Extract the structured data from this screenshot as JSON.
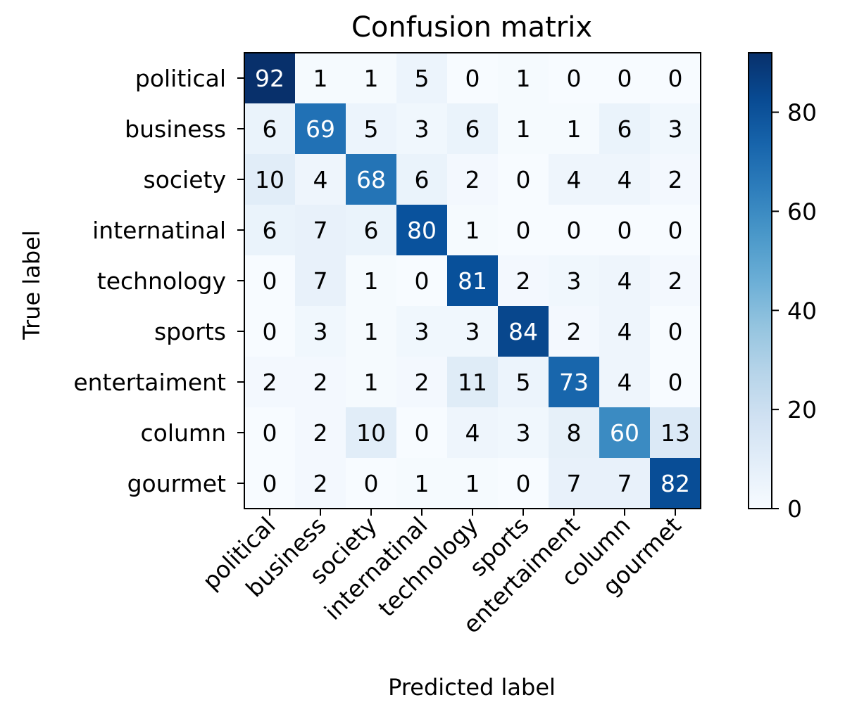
{
  "chart_data": {
    "type": "heatmap",
    "title": "Confusion matrix",
    "xlabel": "Predicted label",
    "ylabel": "True label",
    "x_categories": [
      "political",
      "business",
      "society",
      "internatinal",
      "technology",
      "sports",
      "entertaiment",
      "column",
      "gourmet"
    ],
    "y_categories": [
      "political",
      "business",
      "society",
      "internatinal",
      "technology",
      "sports",
      "entertaiment",
      "column",
      "gourmet"
    ],
    "values": [
      [
        92,
        1,
        1,
        5,
        0,
        1,
        0,
        0,
        0
      ],
      [
        6,
        69,
        5,
        3,
        6,
        1,
        1,
        6,
        3
      ],
      [
        10,
        4,
        68,
        6,
        2,
        0,
        4,
        4,
        2
      ],
      [
        6,
        7,
        6,
        80,
        1,
        0,
        0,
        0,
        0
      ],
      [
        0,
        7,
        1,
        0,
        81,
        2,
        3,
        4,
        2
      ],
      [
        0,
        3,
        1,
        3,
        3,
        84,
        2,
        4,
        0
      ],
      [
        2,
        2,
        1,
        2,
        11,
        5,
        73,
        4,
        0
      ],
      [
        0,
        2,
        10,
        0,
        4,
        3,
        8,
        60,
        13
      ],
      [
        0,
        2,
        0,
        1,
        1,
        0,
        7,
        7,
        82
      ]
    ],
    "colormap": "Blues",
    "color_low": "#f7fbff",
    "color_high": "#08306b",
    "value_range": [
      0,
      92
    ],
    "colorbar_ticks": [
      0,
      20,
      40,
      60,
      80
    ],
    "colorbar_tick_labels": [
      "0",
      "20",
      "40",
      "60",
      "80"
    ],
    "text_color_dark": "#000000",
    "text_color_light": "#ffffff"
  }
}
